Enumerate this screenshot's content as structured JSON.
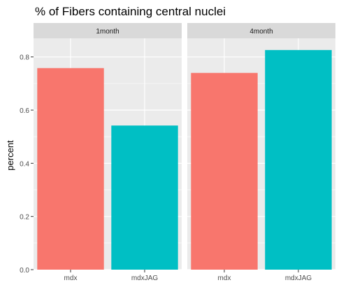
{
  "chart_data": {
    "type": "bar",
    "title": "% of Fibers containing central nuclei",
    "ylabel": "percent",
    "xlabel": "",
    "ylim": [
      0,
      0.87
    ],
    "y_ticks": [
      0.0,
      0.2,
      0.4,
      0.6,
      0.8
    ],
    "y_tick_labels": [
      "0.0",
      "0.2",
      "0.4",
      "0.6",
      "0.8"
    ],
    "categories": [
      "mdx",
      "mdxJAG"
    ],
    "colors": {
      "mdx": "#F8766D",
      "mdxJAG": "#00BFC4",
      "panel_bg": "#EBEBEB",
      "strip_bg": "#D9D9D9",
      "grid": "#FFFFFF"
    },
    "grid": true,
    "legend": "none",
    "facets": [
      {
        "label": "1month",
        "values": [
          0.758,
          0.542
        ]
      },
      {
        "label": "4month",
        "values": [
          0.74,
          0.826
        ]
      }
    ]
  }
}
